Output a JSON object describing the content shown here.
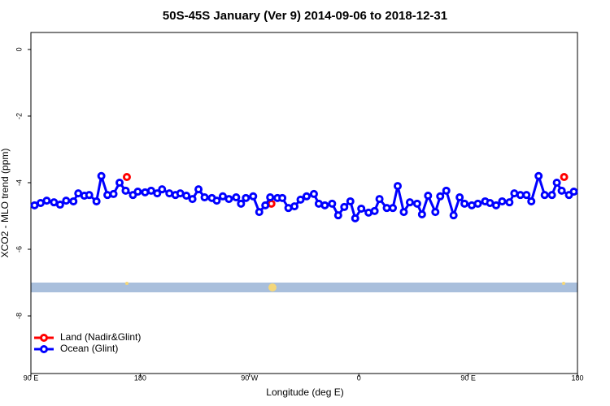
{
  "chart_data": {
    "type": "line",
    "title": "50S-45S January (Ver 9)   2014-09-06 to 2018-12-31",
    "x_label": "Longitude (deg E)",
    "y_label": "XCO2 - MLO trend (ppm)",
    "xlim": [
      90,
      540
    ],
    "ylim": [
      -9.73,
      0.51
    ],
    "xticks": [
      {
        "value": 90,
        "label": "90 E"
      },
      {
        "value": 180,
        "label": "180"
      },
      {
        "value": 270,
        "label": "90 W"
      },
      {
        "value": 360,
        "label": "0"
      },
      {
        "value": 450,
        "label": "90 E"
      },
      {
        "value": 540,
        "label": "180"
      }
    ],
    "yticks": [
      0,
      -2,
      -4,
      -6,
      -8
    ],
    "legend": "bottomleft",
    "series": [
      {
        "name": "Land (Nadir&Glint)",
        "color": "#ff0000",
        "line": false,
        "x": [
          169,
          288,
          529
        ],
        "values": [
          -3.83,
          -4.63,
          -3.83
        ]
      },
      {
        "name": "Ocean (Glint)",
        "color": "#0000ff",
        "line": true,
        "x": [
          93,
          98,
          103,
          109,
          114,
          119,
          125,
          129,
          134,
          138,
          144,
          148,
          153,
          158,
          163,
          168,
          174,
          178,
          184,
          189,
          194,
          198,
          204,
          209,
          213,
          218,
          223,
          228,
          233,
          239,
          243,
          248,
          253,
          259,
          263,
          267,
          273,
          278,
          283,
          287,
          293,
          297,
          302,
          307,
          312,
          317,
          323,
          327,
          332,
          338,
          343,
          348,
          353,
          357,
          362,
          368,
          373,
          377,
          383,
          388,
          392,
          397,
          402,
          408,
          412,
          417,
          423,
          427,
          432,
          438,
          443,
          447,
          453,
          458,
          464,
          468,
          473,
          478,
          484,
          488,
          493,
          498,
          502,
          508,
          513,
          519,
          523,
          527,
          533,
          537
        ],
        "values": [
          -4.68,
          -4.61,
          -4.54,
          -4.59,
          -4.66,
          -4.54,
          -4.56,
          -4.32,
          -4.39,
          -4.37,
          -4.56,
          -3.8,
          -4.37,
          -4.34,
          -4.0,
          -4.24,
          -4.37,
          -4.27,
          -4.29,
          -4.24,
          -4.32,
          -4.2,
          -4.32,
          -4.37,
          -4.32,
          -4.39,
          -4.49,
          -4.2,
          -4.44,
          -4.46,
          -4.54,
          -4.41,
          -4.49,
          -4.44,
          -4.63,
          -4.46,
          -4.41,
          -4.88,
          -4.68,
          -4.44,
          -4.46,
          -4.46,
          -4.76,
          -4.71,
          -4.51,
          -4.41,
          -4.34,
          -4.63,
          -4.68,
          -4.63,
          -4.98,
          -4.73,
          -4.56,
          -5.07,
          -4.78,
          -4.9,
          -4.85,
          -4.49,
          -4.76,
          -4.76,
          -4.1,
          -4.88,
          -4.59,
          -4.63,
          -4.95,
          -4.39,
          -4.88,
          -4.41,
          -4.24,
          -4.98,
          -4.44,
          -4.63,
          -4.68,
          -4.63,
          -4.56,
          -4.61,
          -4.68,
          -4.56,
          -4.59,
          -4.32,
          -4.37,
          -4.37,
          -4.56,
          -3.8,
          -4.37,
          -4.37,
          -4.0,
          -4.24,
          -4.37,
          -4.27
        ]
      }
    ]
  }
}
